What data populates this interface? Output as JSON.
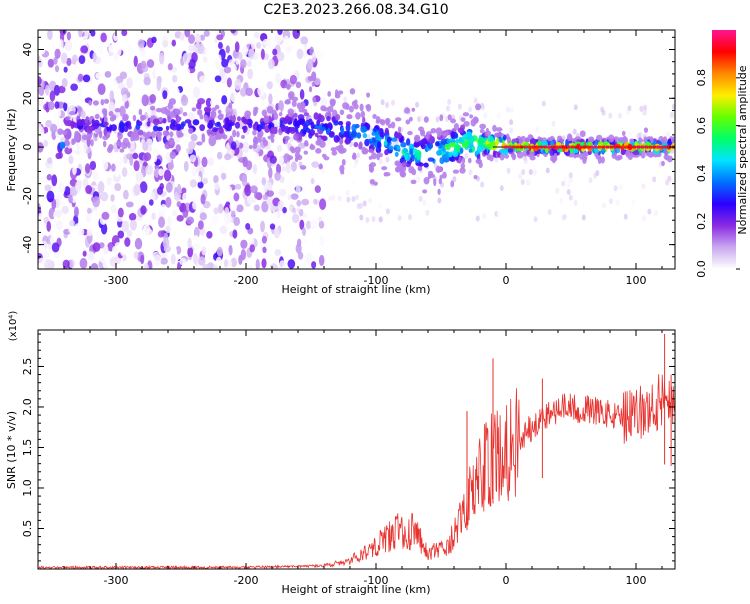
{
  "title": "C2E3.2023.266.08.34.G10",
  "colors": {
    "snr_line": "#e8322e",
    "axis": "#000000",
    "colorbar_stops": [
      "#ffffff",
      "#c9a8ef",
      "#8a2be2",
      "#2b00ff",
      "#0070ff",
      "#00e5ff",
      "#00ff66",
      "#66ff00",
      "#ffee00",
      "#ff8800",
      "#ff0000",
      "#ff1493"
    ]
  },
  "chart_data": [
    {
      "id": "spectrogram",
      "type": "heatmap",
      "xlabel": "Height of straight line (km)",
      "ylabel": "Frequency (Hz)",
      "xlim": [
        -360,
        130
      ],
      "ylim": [
        -50,
        48
      ],
      "xticks": [
        -300,
        -200,
        -100,
        0,
        100
      ],
      "yticks": [
        -40,
        -20,
        0,
        20,
        40
      ],
      "grid": false,
      "colorbar": {
        "label": "Normalized spectral amplitude",
        "range": [
          0.0,
          1.0
        ],
        "ticks": [
          "0.0",
          "0.2",
          "0.4",
          "0.6",
          "0.8"
        ]
      },
      "ridge": {
        "description_points": [
          {
            "x": -340,
            "y": 9,
            "amp": 0.25
          },
          {
            "x": -300,
            "y": 8,
            "amp": 0.3
          },
          {
            "x": -250,
            "y": 9,
            "amp": 0.3
          },
          {
            "x": -170,
            "y": 9,
            "amp": 0.3
          },
          {
            "x": -140,
            "y": 8,
            "amp": 0.35
          },
          {
            "x": -110,
            "y": 6,
            "amp": 0.4
          },
          {
            "x": -90,
            "y": 1,
            "amp": 0.45
          },
          {
            "x": -70,
            "y": -3,
            "amp": 0.5
          },
          {
            "x": -50,
            "y": -2,
            "amp": 0.55
          },
          {
            "x": -30,
            "y": 2,
            "amp": 0.6
          },
          {
            "x": -10,
            "y": 1,
            "amp": 0.75
          },
          {
            "x": 20,
            "y": 0,
            "amp": 0.9
          },
          {
            "x": 60,
            "y": 0,
            "amp": 0.95
          },
          {
            "x": 100,
            "y": 0,
            "amp": 0.9
          },
          {
            "x": 130,
            "y": 0,
            "amp": 0.85
          }
        ],
        "noise_region_x": [
          -360,
          -150
        ]
      }
    },
    {
      "id": "snr",
      "type": "line",
      "xlabel": "Height of straight line (km)",
      "ylabel": "SNR (10 * v/v)",
      "y_multiplier": "(x10⁴)",
      "xlim": [
        -360,
        130
      ],
      "ylim": [
        0,
        2.95
      ],
      "xticks": [
        -300,
        -200,
        -100,
        0,
        100
      ],
      "yticks": [
        "0.5",
        "1.0",
        "1.5",
        "2.0",
        "2.5"
      ],
      "grid": false,
      "series": [
        {
          "values_unit": "x10^4",
          "envelope": [
            {
              "x": -360,
              "y": 0.02
            },
            {
              "x": -200,
              "y": 0.02
            },
            {
              "x": -140,
              "y": 0.04
            },
            {
              "x": -120,
              "y": 0.1
            },
            {
              "x": -100,
              "y": 0.3
            },
            {
              "x": -80,
              "y": 0.5
            },
            {
              "x": -70,
              "y": 0.45
            },
            {
              "x": -60,
              "y": 0.2
            },
            {
              "x": -45,
              "y": 0.25
            },
            {
              "x": -35,
              "y": 0.6
            },
            {
              "x": -25,
              "y": 1.0
            },
            {
              "x": -15,
              "y": 1.3
            },
            {
              "x": -5,
              "y": 1.4
            },
            {
              "x": 10,
              "y": 1.6
            },
            {
              "x": 25,
              "y": 1.85
            },
            {
              "x": 45,
              "y": 2.0
            },
            {
              "x": 70,
              "y": 1.95
            },
            {
              "x": 90,
              "y": 1.85
            },
            {
              "x": 110,
              "y": 1.95
            },
            {
              "x": 125,
              "y": 2.2
            },
            {
              "x": 130,
              "y": 2.0
            }
          ],
          "peaks": [
            {
              "x": -10,
              "y": 2.6
            },
            {
              "x": -30,
              "y": 1.95
            },
            {
              "x": 28,
              "y": 2.35
            },
            {
              "x": 122,
              "y": 2.9
            },
            {
              "x": 127,
              "y": 2.4
            }
          ]
        }
      ]
    }
  ]
}
